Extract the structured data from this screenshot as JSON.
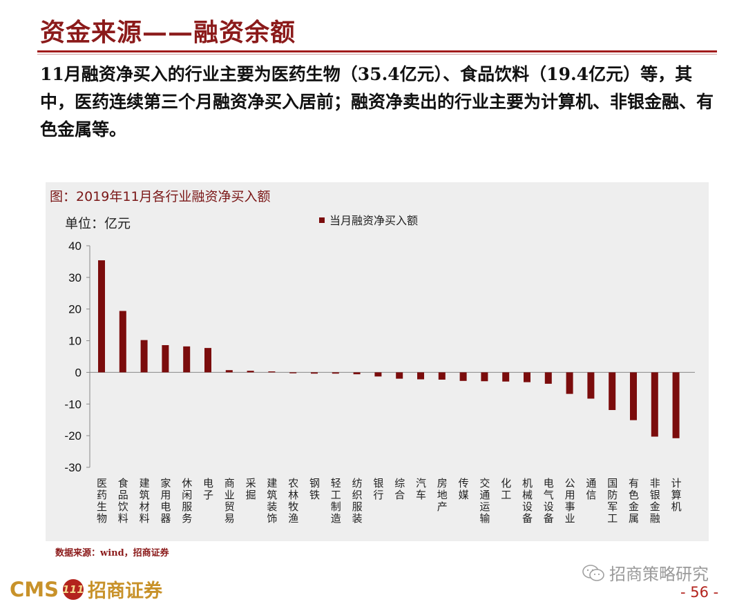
{
  "page": {
    "title": "资金来源——融资余额",
    "paragraph": "11月融资净买入的行业主要为医药生物（35.4亿元）、食品饮料（19.4亿元）等，其中，医药连续第三个月融资净买入居前；融资净卖出的行业主要为计算机、非银金融、有色金属等。",
    "figure_title": "图：2019年11月各行业融资净买入额",
    "source": "数据来源：wind，招商证券",
    "watermark": "招商策略研究",
    "logo_cms": "CMS",
    "logo_mark": "111",
    "logo_cn": "招商证券",
    "page_number": "- 56 -"
  },
  "colors": {
    "bar": "#7b0c0c",
    "accent": "#a11b1b",
    "panel": "#eeeeee"
  },
  "chart_data": {
    "type": "bar",
    "unit_label": "单位：亿元",
    "categories": [
      "医药生物",
      "食品饮料",
      "建筑材料",
      "家用电器",
      "休闲服务",
      "电子",
      "商业贸易",
      "采掘",
      "建筑装饰",
      "农林牧渔",
      "钢铁",
      "轻工制造",
      "纺织服装",
      "银行",
      "综合",
      "汽车",
      "房地产",
      "传媒",
      "交通运输",
      "化工",
      "机械设备",
      "电气设备",
      "公用事业",
      "通信",
      "国防军工",
      "有色金属",
      "非银金融",
      "计算机"
    ],
    "series": [
      {
        "name": "当月融资净买入额",
        "values": [
          35.4,
          19.4,
          10.2,
          8.6,
          8.2,
          7.7,
          0.7,
          0.5,
          0.3,
          -0.3,
          -0.4,
          -0.4,
          -0.6,
          -1.3,
          -2.0,
          -2.2,
          -2.3,
          -2.7,
          -2.8,
          -2.9,
          -3.1,
          -3.6,
          -6.8,
          -8.3,
          -11.9,
          -15.1,
          -20.3,
          -20.8
        ]
      }
    ],
    "ylim": [
      -30,
      40
    ],
    "yticks": [
      40,
      30,
      20,
      10,
      0,
      -10,
      -20,
      -30
    ],
    "legend_position": "top-center"
  }
}
